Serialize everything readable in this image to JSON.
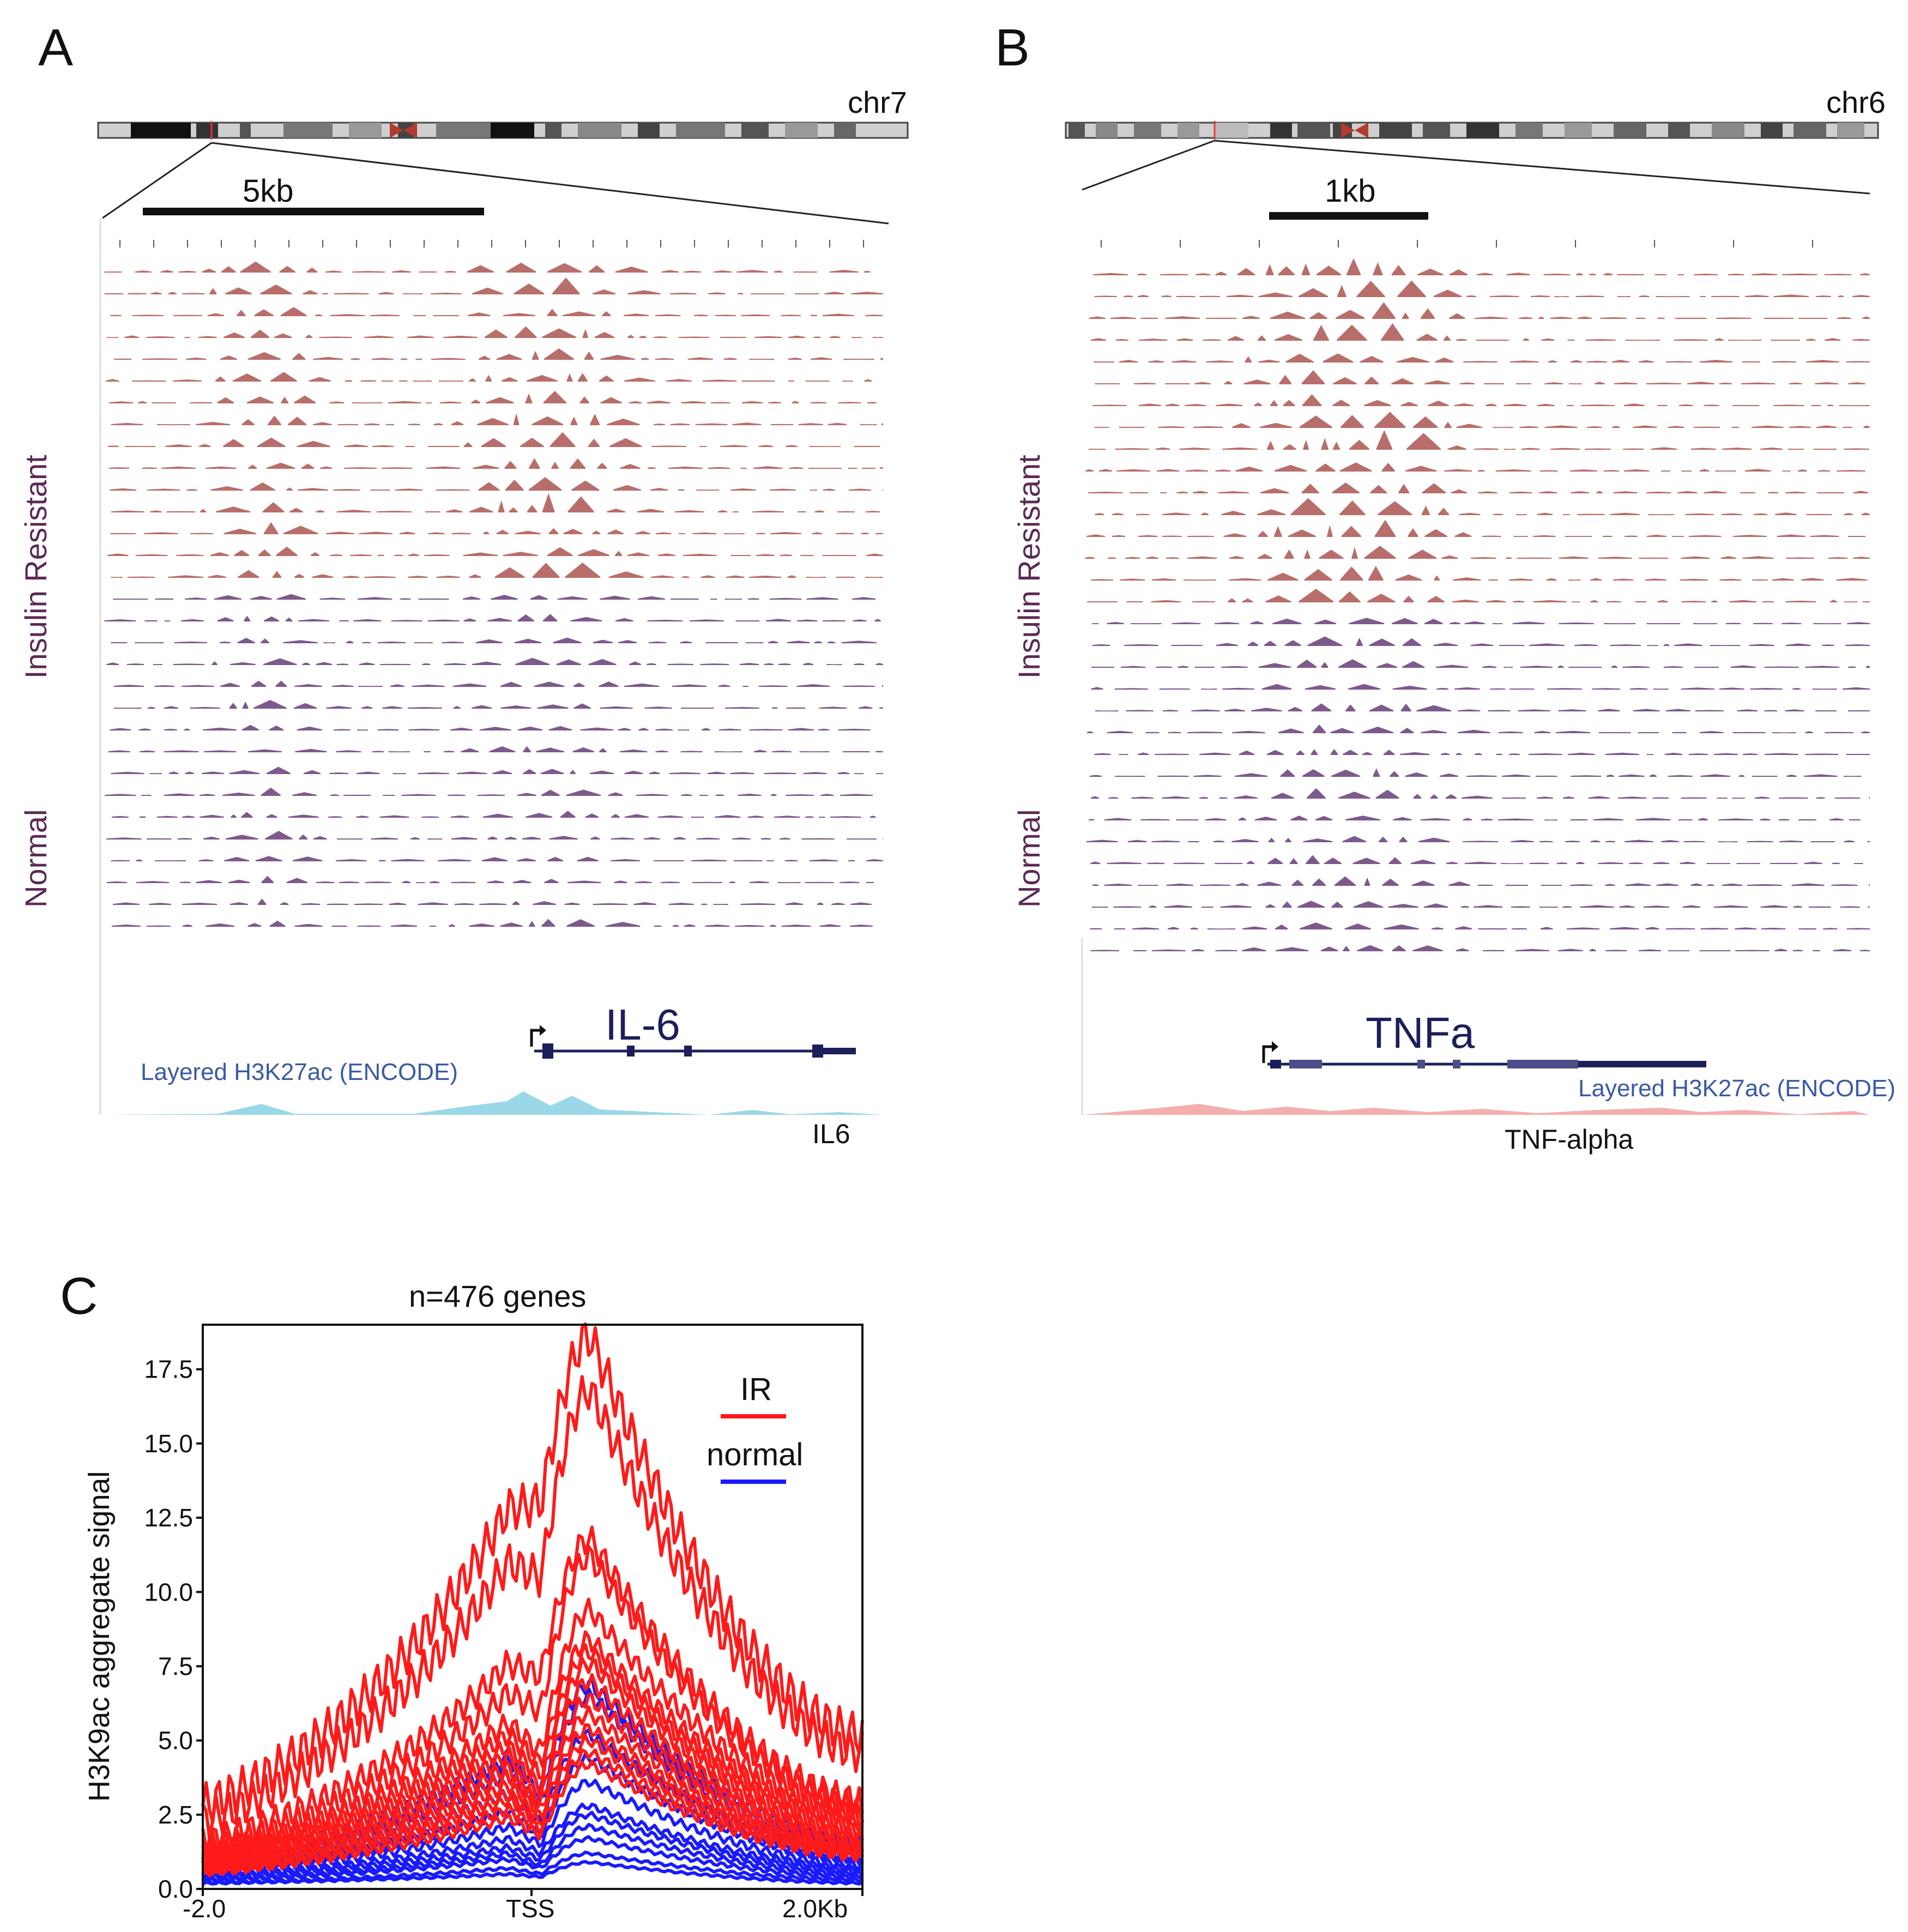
{
  "panels": {
    "a": {
      "letter": "A",
      "chromosome": "chr7",
      "scale_bar": "5kb",
      "gene": "IL-6",
      "encode_label": "Layered H3K27ac (ENCODE)",
      "gene_caption": "IL6",
      "group_top": "Insulin Resistant",
      "group_bottom": "Normal"
    },
    "b": {
      "letter": "B",
      "chromosome": "chr6",
      "scale_bar": "1kb",
      "gene": "TNFa",
      "encode_label": "Layered H3K27ac (ENCODE)",
      "gene_caption": "TNF-alpha",
      "group_top": "Insulin Resistant",
      "group_bottom": "Normal"
    },
    "c": {
      "letter": "C"
    }
  },
  "colors": {
    "ir_track": "#b86e6a",
    "normal_track": "#7d5a8c",
    "ir_line": "#ff1a1a",
    "normal_line": "#1a1aff",
    "encode_a": "#8fd3e6",
    "encode_b": "#f2a0a0",
    "gene_model": "#1c1f5a"
  },
  "chart_data": {
    "type": "line",
    "title": "n=476 genes",
    "xlabel": "",
    "ylabel": "H3K9ac aggregate signal",
    "x_tick_labels": [
      "-2.0",
      "TSS",
      "2.0Kb"
    ],
    "x_range": [
      -2.0,
      2.0
    ],
    "ylim": [
      0,
      19
    ],
    "y_ticks": [
      0.0,
      2.5,
      5.0,
      7.5,
      10.0,
      12.5,
      15.0,
      17.5
    ],
    "y_tick_labels": [
      "0.0",
      "2.5",
      "5.0",
      "7.5",
      "10.0",
      "12.5",
      "15.0",
      "17.5"
    ],
    "legend": [
      {
        "label": "IR",
        "color": "#ff1a1a"
      },
      {
        "label": "normal",
        "color": "#1a1aff"
      }
    ],
    "legend_position": "top-right",
    "series": [
      {
        "group": "IR",
        "edge": 2.8,
        "pre": 12.8,
        "dip": 13.0,
        "peak": 18.6,
        "end": 5.2
      },
      {
        "group": "IR",
        "edge": 2.3,
        "pre": 11.0,
        "dip": 10.5,
        "peak": 16.8,
        "end": 4.6
      },
      {
        "group": "IR",
        "edge": 1.6,
        "pre": 7.6,
        "dip": 7.2,
        "peak": 11.8,
        "end": 3.0
      },
      {
        "group": "IR",
        "edge": 1.4,
        "pre": 6.6,
        "dip": 6.0,
        "peak": 11.2,
        "end": 2.8
      },
      {
        "group": "IR",
        "edge": 1.3,
        "pre": 5.6,
        "dip": 4.6,
        "peak": 9.4,
        "end": 2.6
      },
      {
        "group": "IR",
        "edge": 1.2,
        "pre": 5.2,
        "dip": 4.2,
        "peak": 8.4,
        "end": 2.4
      },
      {
        "group": "IR",
        "edge": 1.1,
        "pre": 4.8,
        "dip": 3.8,
        "peak": 8.0,
        "end": 2.2
      },
      {
        "group": "IR",
        "edge": 1.0,
        "pre": 4.5,
        "dip": 3.4,
        "peak": 7.6,
        "end": 2.0
      },
      {
        "group": "IR",
        "edge": 0.9,
        "pre": 4.1,
        "dip": 3.0,
        "peak": 7.0,
        "end": 1.8
      },
      {
        "group": "IR",
        "edge": 0.9,
        "pre": 3.8,
        "dip": 2.8,
        "peak": 6.4,
        "end": 1.7
      },
      {
        "group": "IR",
        "edge": 0.8,
        "pre": 3.5,
        "dip": 2.6,
        "peak": 5.9,
        "end": 1.5
      },
      {
        "group": "IR",
        "edge": 0.7,
        "pre": 3.2,
        "dip": 2.4,
        "peak": 5.4,
        "end": 1.4
      },
      {
        "group": "IR",
        "edge": 0.7,
        "pre": 3.0,
        "dip": 2.2,
        "peak": 5.0,
        "end": 1.3
      },
      {
        "group": "IR",
        "edge": 0.6,
        "pre": 2.7,
        "dip": 2.0,
        "peak": 4.6,
        "end": 1.2
      },
      {
        "group": "IR",
        "edge": 0.6,
        "pre": 2.4,
        "dip": 1.8,
        "peak": 4.2,
        "end": 1.1
      },
      {
        "group": "normal",
        "edge": 0.9,
        "pre": 4.4,
        "dip": 3.2,
        "peak": 6.9,
        "end": 1.5
      },
      {
        "group": "normal",
        "edge": 0.8,
        "pre": 3.9,
        "dip": 2.8,
        "peak": 6.5,
        "end": 1.3
      },
      {
        "group": "normal",
        "edge": 0.7,
        "pre": 3.2,
        "dip": 2.2,
        "peak": 5.2,
        "end": 1.1
      },
      {
        "group": "normal",
        "edge": 0.6,
        "pre": 2.6,
        "dip": 1.8,
        "peak": 4.4,
        "end": 1.0
      },
      {
        "group": "normal",
        "edge": 0.5,
        "pre": 2.1,
        "dip": 1.5,
        "peak": 3.6,
        "end": 0.8
      },
      {
        "group": "normal",
        "edge": 0.4,
        "pre": 1.7,
        "dip": 1.2,
        "peak": 2.8,
        "end": 0.7
      },
      {
        "group": "normal",
        "edge": 0.4,
        "pre": 1.4,
        "dip": 1.0,
        "peak": 2.5,
        "end": 0.6
      },
      {
        "group": "normal",
        "edge": 0.3,
        "pre": 1.2,
        "dip": 0.8,
        "peak": 2.1,
        "end": 0.5
      },
      {
        "group": "normal",
        "edge": 0.3,
        "pre": 1.0,
        "dip": 0.7,
        "peak": 1.7,
        "end": 0.4
      },
      {
        "group": "normal",
        "edge": 0.2,
        "pre": 0.7,
        "dip": 0.5,
        "peak": 1.2,
        "end": 0.3
      },
      {
        "group": "normal",
        "edge": 0.2,
        "pre": 0.5,
        "dip": 0.4,
        "peak": 0.9,
        "end": 0.2
      }
    ]
  }
}
